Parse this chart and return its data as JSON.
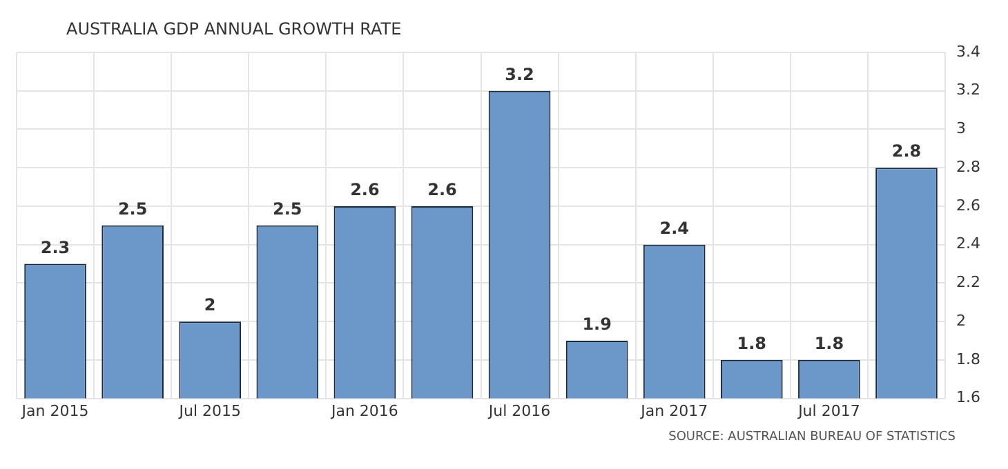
{
  "chart_data": {
    "type": "bar",
    "title": "AUSTRALIA GDP ANNUAL GROWTH RATE",
    "categories": [
      "Jan 2015",
      null,
      "Jul 2015",
      null,
      "Jan 2016",
      null,
      "Jul 2016",
      null,
      "Jan 2017",
      null,
      "Jul 2017",
      null
    ],
    "values": [
      2.3,
      2.5,
      2,
      2.5,
      2.6,
      2.6,
      3.2,
      1.9,
      2.4,
      1.8,
      1.8,
      2.8
    ],
    "color": "#6b98c8",
    "ylim": [
      1.6,
      3.4
    ],
    "yticks": [
      1.6,
      1.8,
      2,
      2.2,
      2.4,
      2.6,
      2.8,
      3,
      3.2,
      3.4
    ],
    "grid": true,
    "data_labels": true,
    "annotations": [
      "SOURCE: AUSTRALIAN BUREAU OF STATISTICS"
    ]
  }
}
